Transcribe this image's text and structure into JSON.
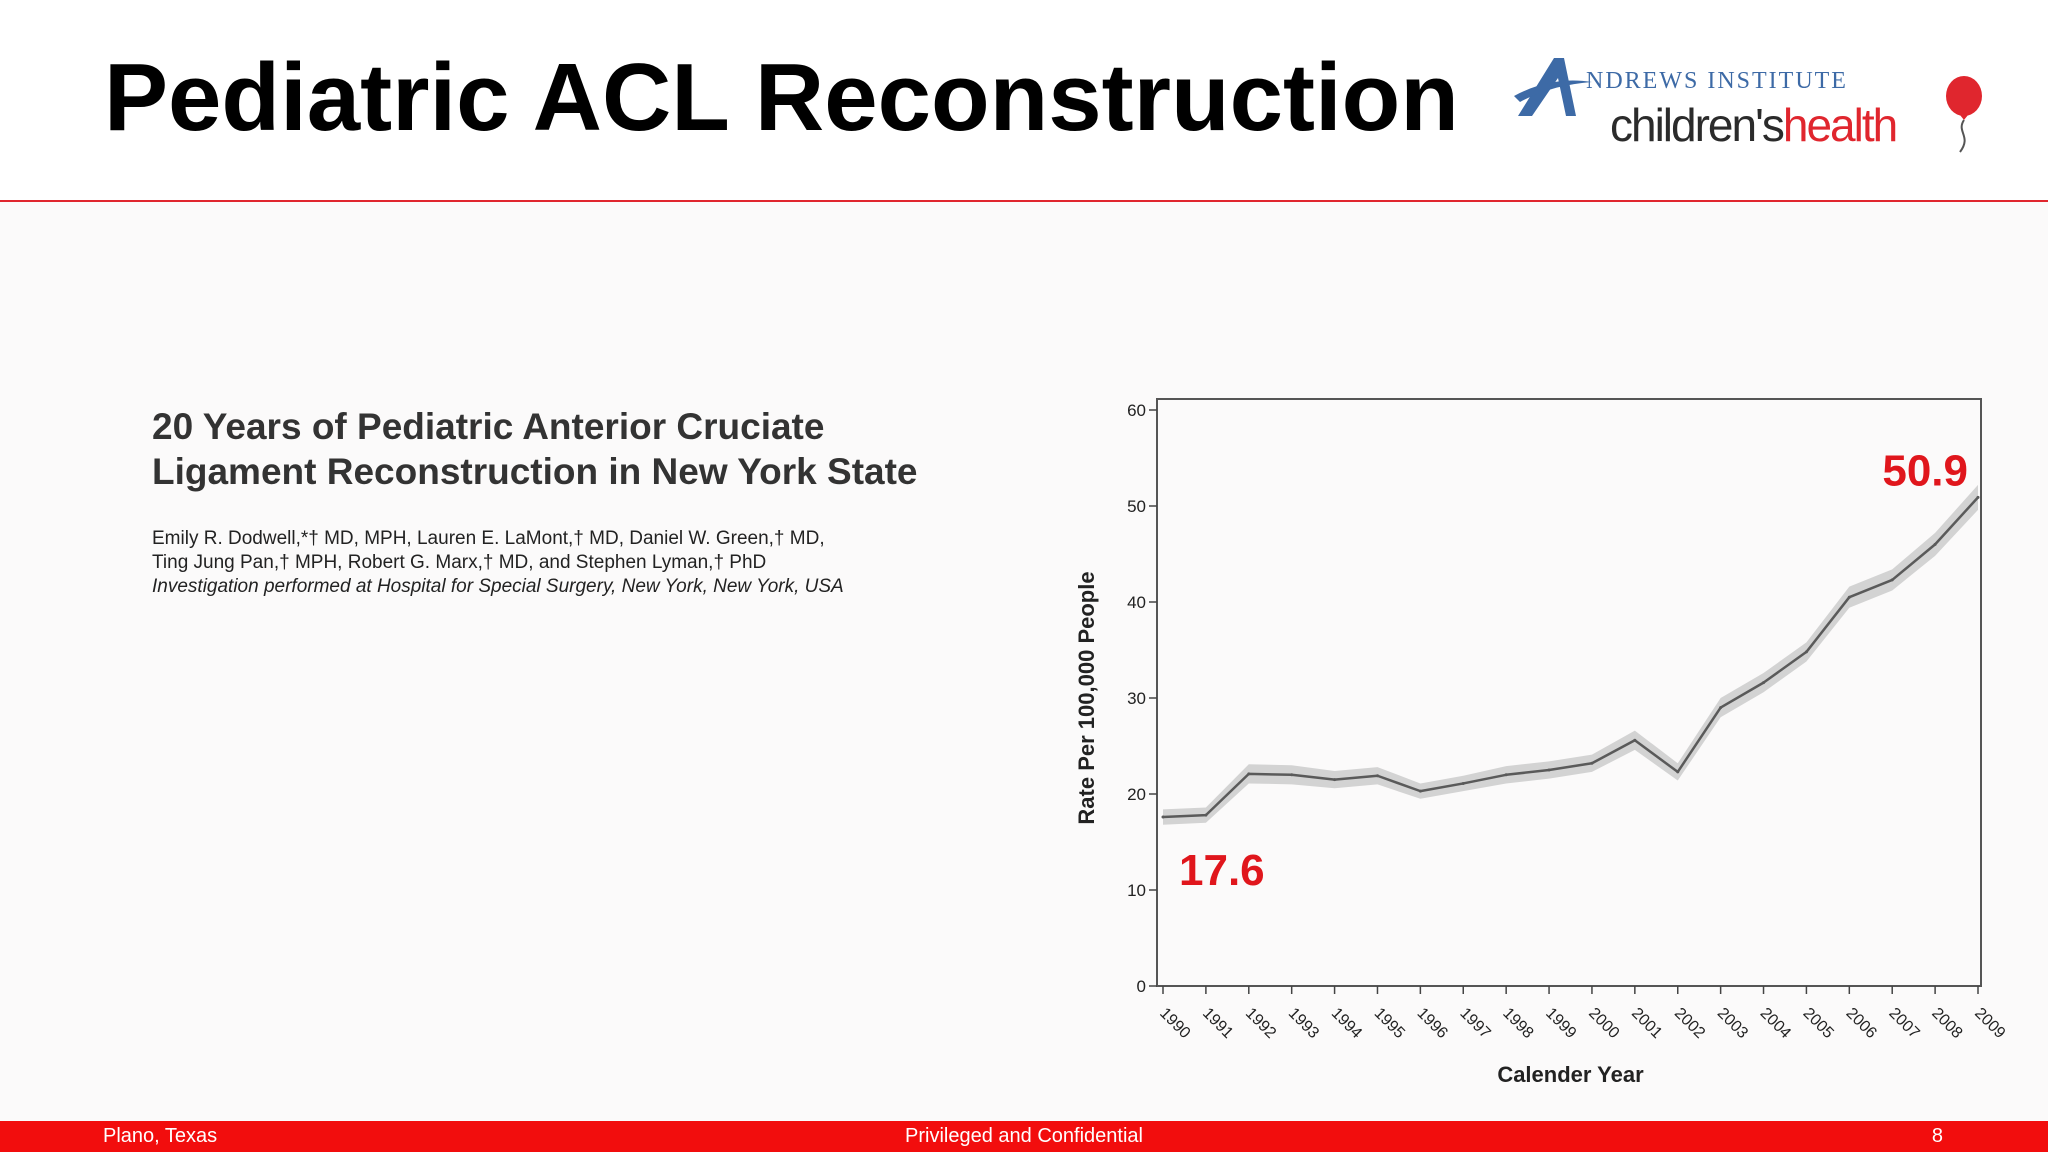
{
  "slide": {
    "title": "Pediatric ACL Reconstruction",
    "logo": {
      "line1_initial": "A",
      "line1_text": "NDREWS INSTITUTE",
      "line2_part1": "children's",
      "line2_part2": "health",
      "brand_red": "#e0262e",
      "brand_blue": "#3d6aa6"
    }
  },
  "paper": {
    "title_line1": "20 Years of Pediatric Anterior Cruciate",
    "title_line2": "Ligament Reconstruction in New York State",
    "authors_line1": "Emily R. Dodwell,*† MD, MPH, Lauren E. LaMont,† MD, Daniel W. Green,† MD,",
    "authors_line2": "Ting Jung Pan,† MPH, Robert G. Marx,† MD, and Stephen Lyman,† PhD",
    "institution": "Investigation performed at Hospital for Special Surgery, New York, New York, USA"
  },
  "chart_data": {
    "type": "line",
    "x": [
      1990,
      1991,
      1992,
      1993,
      1994,
      1995,
      1996,
      1997,
      1998,
      1999,
      2000,
      2001,
      2002,
      2003,
      2004,
      2005,
      2006,
      2007,
      2008,
      2009
    ],
    "series": [
      {
        "values": [
          17.6,
          17.8,
          22.1,
          22.0,
          21.5,
          21.9,
          20.3,
          21.1,
          22.0,
          22.5,
          23.2,
          25.6,
          22.3,
          29.0,
          31.6,
          34.8,
          40.5,
          42.3,
          46.0,
          50.9
        ],
        "ci_lower": [
          16.8,
          17.0,
          21.1,
          21.0,
          20.6,
          21.0,
          19.5,
          20.3,
          21.1,
          21.6,
          22.3,
          24.6,
          21.4,
          28.0,
          30.6,
          33.8,
          39.4,
          41.2,
          44.8,
          49.6
        ],
        "ci_upper": [
          18.4,
          18.6,
          23.1,
          23.0,
          22.4,
          22.8,
          21.1,
          21.9,
          22.9,
          23.4,
          24.1,
          26.6,
          23.2,
          30.0,
          32.6,
          35.8,
          41.6,
          43.4,
          47.2,
          52.2
        ]
      }
    ],
    "xlabel": "Calender Year",
    "ylabel": "Rate Per 100,000 People",
    "ylim": [
      0,
      60
    ],
    "yticks": [
      0,
      10,
      20,
      30,
      40,
      50,
      60
    ],
    "grid": false,
    "annotations": [
      {
        "text": "17.6",
        "year": 1990,
        "value": 17.6
      },
      {
        "text": "50.9",
        "year": 2009,
        "value": 50.9
      }
    ],
    "line_color": "#5a5a5a",
    "band_color": "#d3d3d3",
    "annotation_color": "#e0161c"
  },
  "footer": {
    "left": "Plano, Texas",
    "center": "Privileged and Confidential",
    "right": "8",
    "background": "#f20d0d"
  }
}
